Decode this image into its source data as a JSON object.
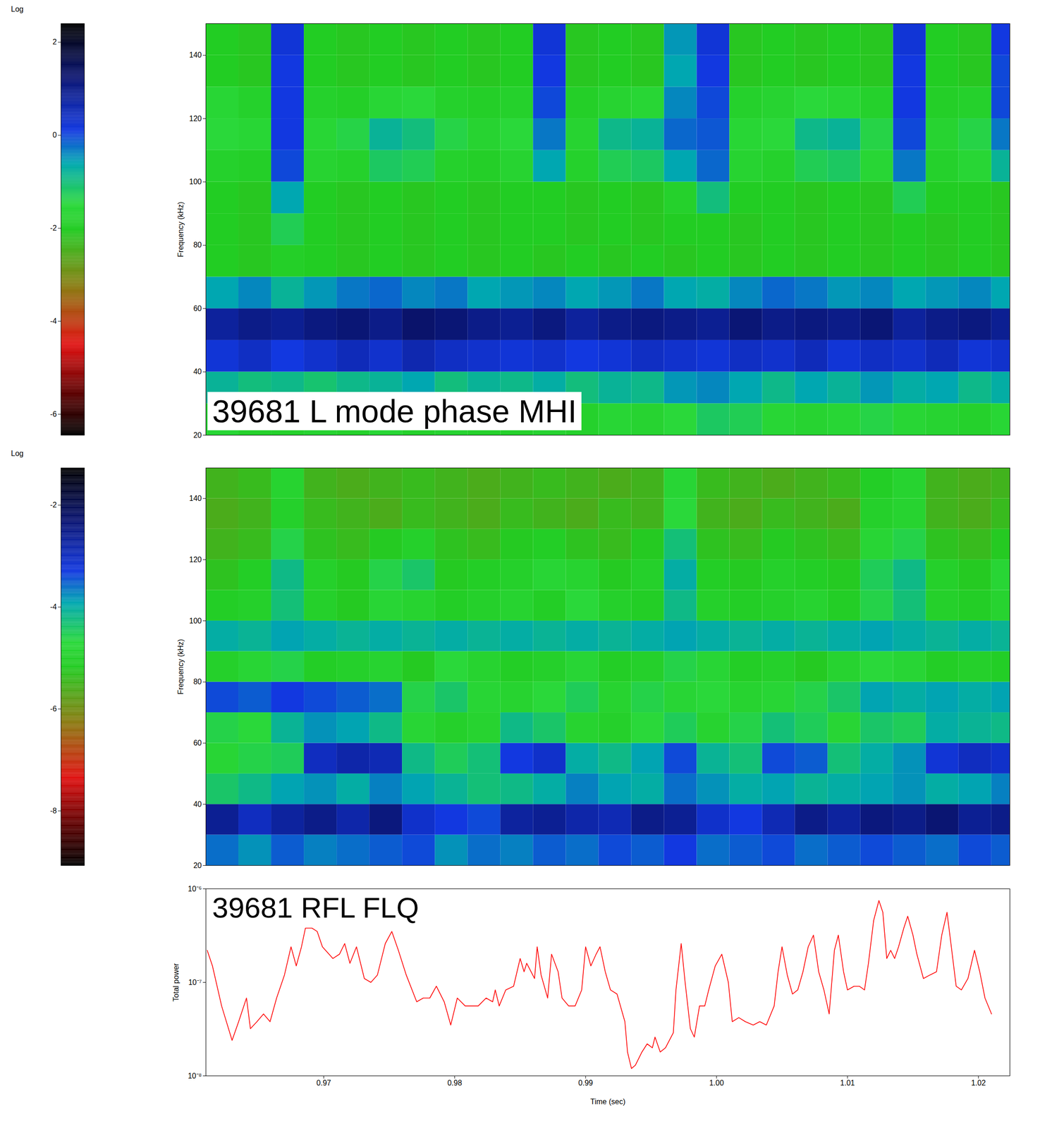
{
  "chart_data": [
    {
      "type": "heatmap",
      "annotation": "39681 L mode phase MHI",
      "ylabel": "Frequency (kHz)",
      "tick_labels": "y",
      "xlim": [
        0.961,
        1.0224
      ],
      "ylim": [
        20,
        150
      ],
      "yticks": [
        20,
        40,
        60,
        80,
        100,
        120,
        140
      ],
      "x_edges": [
        0.961,
        0.9635,
        0.966,
        0.9685,
        0.971,
        0.9735,
        0.976,
        0.9785,
        0.981,
        0.9835,
        0.986,
        0.9885,
        0.991,
        0.9935,
        0.996,
        0.9985,
        1.001,
        1.0035,
        1.006,
        1.0085,
        1.011,
        1.0135,
        1.016,
        1.0185,
        1.021,
        1.0235
      ],
      "y_edges": [
        20,
        30,
        40,
        50,
        60,
        70,
        80,
        90,
        100,
        110,
        120,
        130,
        140,
        150
      ],
      "cells": [
        [
          -1.6,
          -1.8,
          -1.8,
          -1.7,
          -1.8,
          -1.6,
          -1.8,
          -1.7,
          -1.8,
          -1.8,
          -1.7,
          -1.8,
          -1.6,
          -1.7,
          -1.5,
          -1.2,
          -1.3,
          -1.6,
          -1.7,
          -1.6,
          -1.4,
          -1.6,
          -1.7,
          -1.8,
          -1.6
        ],
        [
          -0.8,
          -1.0,
          -0.9,
          -1.1,
          -0.9,
          -0.8,
          -0.6,
          -1.0,
          -0.8,
          -0.9,
          -0.7,
          -1.0,
          -0.8,
          -0.9,
          -0.5,
          -0.4,
          -0.6,
          -0.9,
          -0.6,
          -0.8,
          -0.5,
          -0.7,
          -0.6,
          -0.9,
          -0.7
        ],
        [
          0.2,
          0.4,
          0.1,
          0.3,
          0.5,
          0.3,
          0.6,
          0.4,
          0.3,
          0.2,
          0.3,
          0.1,
          0.2,
          0.4,
          0.3,
          0.2,
          0.4,
          0.3,
          0.5,
          0.2,
          0.4,
          0.3,
          0.5,
          0.2,
          0.3
        ],
        [
          0.8,
          1.0,
          0.9,
          1.1,
          1.2,
          1.0,
          1.3,
          1.2,
          1.0,
          0.9,
          1.1,
          0.8,
          1.0,
          1.1,
          1.0,
          0.9,
          1.2,
          1.0,
          1.1,
          1.0,
          1.2,
          0.8,
          1.0,
          1.1,
          0.9
        ],
        [
          -0.6,
          -0.4,
          -0.8,
          -0.5,
          -0.3,
          -0.2,
          -0.4,
          -0.3,
          -0.6,
          -0.5,
          -0.4,
          -0.6,
          -0.5,
          -0.3,
          -0.6,
          -0.7,
          -0.4,
          -0.2,
          -0.3,
          -0.5,
          -0.4,
          -0.6,
          -0.5,
          -0.4,
          -0.6
        ],
        [
          -2.0,
          -2.1,
          -1.9,
          -2.0,
          -2.1,
          -2.0,
          -2.1,
          -2.0,
          -2.1,
          -2.0,
          -2.1,
          -2.0,
          -2.1,
          -2.0,
          -2.1,
          -2.0,
          -2.1,
          -2.0,
          -2.1,
          -2.0,
          -2.1,
          -2.0,
          -2.1,
          -2.0,
          -2.1
        ],
        [
          -2.0,
          -2.1,
          -1.3,
          -2.0,
          -2.1,
          -2.0,
          -2.1,
          -2.0,
          -2.1,
          -2.0,
          -2.0,
          -2.1,
          -2.0,
          -2.1,
          -2.0,
          -2.0,
          -2.1,
          -2.0,
          -2.1,
          -2.0,
          -2.1,
          -2.0,
          -2.1,
          -2.0,
          -2.1
        ],
        [
          -2.0,
          -2.1,
          -0.6,
          -2.0,
          -2.1,
          -2.0,
          -2.1,
          -2.0,
          -2.1,
          -2.0,
          -2.0,
          -2.1,
          -2.0,
          -2.1,
          -1.8,
          -1.0,
          -2.0,
          -2.0,
          -2.1,
          -2.0,
          -2.1,
          -1.3,
          -2.0,
          -2.0,
          -2.1
        ],
        [
          -1.8,
          -1.9,
          0.0,
          -1.7,
          -1.8,
          -1.2,
          -1.3,
          -1.8,
          -1.9,
          -1.7,
          -0.6,
          -1.8,
          -1.3,
          -1.2,
          -0.6,
          -0.2,
          -1.7,
          -1.8,
          -1.3,
          -1.2,
          -1.6,
          -0.3,
          -1.8,
          -1.6,
          -0.8
        ],
        [
          -1.5,
          -1.6,
          0.1,
          -1.6,
          -1.4,
          -0.8,
          -1.0,
          -1.4,
          -1.7,
          -1.5,
          -0.3,
          -1.7,
          -0.9,
          -0.8,
          -0.2,
          -0.1,
          -1.6,
          -1.5,
          -0.9,
          -0.8,
          -1.4,
          0.0,
          -1.7,
          -1.4,
          -0.3
        ],
        [
          -1.6,
          -1.8,
          0.1,
          -1.8,
          -1.9,
          -1.6,
          -1.5,
          -1.8,
          -1.9,
          -1.8,
          0.0,
          -1.9,
          -1.7,
          -1.6,
          -0.4,
          0.0,
          -1.8,
          -1.7,
          -1.5,
          -1.6,
          -1.8,
          0.1,
          -1.9,
          -1.8,
          0.0
        ],
        [
          -2.0,
          -2.1,
          0.1,
          -2.0,
          -2.1,
          -2.0,
          -2.1,
          -2.0,
          -2.1,
          -2.0,
          0.1,
          -2.1,
          -2.0,
          -2.1,
          -0.6,
          0.1,
          -2.1,
          -2.0,
          -2.1,
          -2.0,
          -2.1,
          0.1,
          -2.0,
          -2.1,
          0.0
        ],
        [
          -2.0,
          -2.1,
          0.2,
          -2.0,
          -2.1,
          -2.0,
          -2.1,
          -2.0,
          -2.1,
          -2.0,
          0.2,
          -2.1,
          -2.0,
          -2.1,
          -0.5,
          0.2,
          -2.1,
          -2.0,
          -2.1,
          -2.0,
          -2.1,
          0.2,
          -2.0,
          -2.1,
          0.1
        ]
      ],
      "colorbar": {
        "title": "Log",
        "range": [
          -6.45,
          2.4
        ],
        "ticks": [
          2,
          0,
          -2,
          -4,
          -6
        ]
      }
    },
    {
      "type": "heatmap",
      "ylabel": "Frequency (kHz)",
      "tick_labels": "y",
      "xlim": [
        0.961,
        1.0224
      ],
      "ylim": [
        20,
        150
      ],
      "yticks": [
        20,
        40,
        60,
        80,
        100,
        120,
        140
      ],
      "x_edges": [
        0.961,
        0.9635,
        0.966,
        0.9685,
        0.971,
        0.9735,
        0.976,
        0.9785,
        0.981,
        0.9835,
        0.986,
        0.9885,
        0.991,
        0.9935,
        0.996,
        0.9985,
        1.001,
        1.0035,
        1.006,
        1.0085,
        1.011,
        1.0135,
        1.016,
        1.0185,
        1.021,
        1.0235
      ],
      "y_edges": [
        20,
        30,
        40,
        50,
        60,
        70,
        80,
        90,
        100,
        110,
        120,
        130,
        140,
        150
      ],
      "cells": [
        [
          -3.6,
          -3.8,
          -3.5,
          -3.7,
          -3.6,
          -3.5,
          -3.4,
          -3.8,
          -3.6,
          -3.7,
          -3.5,
          -3.6,
          -3.4,
          -3.5,
          -3.3,
          -3.6,
          -3.5,
          -3.4,
          -3.6,
          -3.5,
          -3.4,
          -3.5,
          -3.6,
          -3.4,
          -3.5
        ],
        [
          -2.6,
          -3.0,
          -2.7,
          -2.5,
          -2.8,
          -2.4,
          -3.1,
          -3.3,
          -3.4,
          -2.7,
          -2.6,
          -2.8,
          -2.9,
          -2.5,
          -2.6,
          -3.1,
          -3.3,
          -2.9,
          -2.5,
          -2.7,
          -2.4,
          -2.5,
          -2.3,
          -2.6,
          -2.5
        ],
        [
          -4.4,
          -4.2,
          -3.9,
          -3.8,
          -4.0,
          -3.7,
          -3.9,
          -4.1,
          -4.3,
          -4.2,
          -4.0,
          -3.7,
          -3.9,
          -4.0,
          -3.6,
          -3.8,
          -4.0,
          -3.9,
          -4.1,
          -4.0,
          -3.9,
          -3.8,
          -4.0,
          -3.9,
          -3.7
        ],
        [
          -4.8,
          -4.6,
          -4.5,
          -3.0,
          -2.8,
          -2.9,
          -4.2,
          -4.5,
          -4.3,
          -3.3,
          -3.1,
          -4.0,
          -4.2,
          -3.9,
          -3.4,
          -4.1,
          -4.3,
          -3.4,
          -3.5,
          -4.3,
          -4.0,
          -3.8,
          -3.2,
          -3.0,
          -3.1
        ],
        [
          -4.6,
          -4.7,
          -4.1,
          -3.8,
          -3.9,
          -4.2,
          -4.8,
          -5.0,
          -4.9,
          -4.2,
          -4.4,
          -4.9,
          -5.0,
          -4.7,
          -4.5,
          -4.9,
          -4.6,
          -4.3,
          -4.5,
          -4.8,
          -4.4,
          -4.5,
          -4.0,
          -4.1,
          -4.2
        ],
        [
          -3.4,
          -3.5,
          -3.3,
          -3.4,
          -3.5,
          -3.6,
          -4.6,
          -4.4,
          -4.8,
          -4.9,
          -4.7,
          -4.5,
          -4.9,
          -4.6,
          -4.8,
          -4.7,
          -4.9,
          -4.8,
          -4.6,
          -4.4,
          -3.9,
          -4.0,
          -3.9,
          -4.0,
          -3.9
        ],
        [
          -5.0,
          -4.8,
          -4.6,
          -5.1,
          -5.0,
          -4.9,
          -5.2,
          -4.7,
          -4.9,
          -5.1,
          -5.0,
          -4.8,
          -5.1,
          -5.0,
          -4.6,
          -4.8,
          -5.1,
          -5.0,
          -5.2,
          -4.9,
          -4.7,
          -4.8,
          -5.1,
          -5.0,
          -5.1
        ],
        [
          -4.0,
          -4.1,
          -3.9,
          -4.0,
          -4.1,
          -4.0,
          -4.1,
          -4.0,
          -4.1,
          -4.0,
          -4.1,
          -4.0,
          -4.1,
          -4.0,
          -3.9,
          -4.0,
          -4.1,
          -4.0,
          -4.1,
          -4.0,
          -3.9,
          -4.0,
          -4.1,
          -4.0,
          -4.1
        ],
        [
          -5.1,
          -5.0,
          -4.3,
          -5.0,
          -5.2,
          -4.8,
          -4.9,
          -5.1,
          -5.0,
          -4.9,
          -5.1,
          -4.7,
          -5.0,
          -5.1,
          -4.2,
          -5.0,
          -5.1,
          -5.0,
          -4.9,
          -5.1,
          -4.6,
          -4.3,
          -5.0,
          -5.1,
          -4.9
        ],
        [
          -5.3,
          -5.1,
          -4.2,
          -5.0,
          -5.2,
          -4.6,
          -4.4,
          -5.2,
          -5.1,
          -5.0,
          -4.8,
          -4.9,
          -5.2,
          -5.0,
          -4.0,
          -5.1,
          -5.2,
          -5.0,
          -5.1,
          -5.2,
          -4.5,
          -4.2,
          -5.0,
          -5.2,
          -4.8
        ],
        [
          -5.5,
          -5.4,
          -4.6,
          -5.3,
          -5.4,
          -5.2,
          -5.0,
          -5.3,
          -5.4,
          -5.2,
          -5.1,
          -5.3,
          -5.4,
          -5.2,
          -4.3,
          -5.3,
          -5.4,
          -5.2,
          -5.3,
          -5.4,
          -4.8,
          -4.6,
          -5.3,
          -5.4,
          -5.2
        ],
        [
          -5.6,
          -5.5,
          -5.0,
          -5.4,
          -5.5,
          -5.6,
          -5.4,
          -5.5,
          -5.6,
          -5.4,
          -5.5,
          -5.6,
          -5.4,
          -5.5,
          -4.7,
          -5.5,
          -5.6,
          -5.4,
          -5.5,
          -5.6,
          -5.0,
          -4.9,
          -5.5,
          -5.6,
          -5.4
        ],
        [
          -5.5,
          -5.4,
          -4.9,
          -5.5,
          -5.6,
          -5.5,
          -5.4,
          -5.5,
          -5.6,
          -5.5,
          -5.4,
          -5.5,
          -5.6,
          -5.5,
          -4.8,
          -5.4,
          -5.5,
          -5.6,
          -5.5,
          -5.4,
          -5.1,
          -4.9,
          -5.5,
          -5.6,
          -5.5
        ]
      ],
      "colorbar": {
        "title": "Log",
        "range": [
          -9.07,
          -1.27
        ],
        "ticks": [
          -2,
          -4,
          -6,
          -8
        ]
      }
    },
    {
      "type": "line",
      "annotation": "39681 RFL FLQ",
      "xlabel": "Time (sec)",
      "ylabel": "Total power",
      "log": "y",
      "xlim": [
        0.961,
        1.0224
      ],
      "ylim": [
        1e-08,
        1e-06
      ],
      "xticks": [
        0.97,
        0.98,
        0.99,
        {
          "value": 1,
          "label": "1.00"
        },
        1.01,
        1.02
      ],
      "yticks": [
        {
          "value": 1e-08,
          "label": "10⁻⁸"
        },
        {
          "value": 1e-07,
          "label": "10⁻⁷"
        },
        {
          "value": 1e-06,
          "label": "10⁻⁶"
        }
      ],
      "x": [
        0.9611,
        0.9615,
        0.9622,
        0.963,
        0.9635,
        0.9641,
        0.9644,
        0.9649,
        0.9654,
        0.9659,
        0.9664,
        0.967,
        0.9675,
        0.9679,
        0.9683,
        0.9686,
        0.9691,
        0.9695,
        0.9699,
        0.9707,
        0.9712,
        0.9716,
        0.972,
        0.9725,
        0.9731,
        0.9736,
        0.9741,
        0.9747,
        0.9752,
        0.9757,
        0.9763,
        0.9771,
        0.9776,
        0.9781,
        0.9786,
        0.9792,
        0.9797,
        0.9802,
        0.9808,
        0.9813,
        0.9818,
        0.9824,
        0.9829,
        0.9831,
        0.9834,
        0.9839,
        0.9845,
        0.985,
        0.9853,
        0.9855,
        0.9861,
        0.9863,
        0.9866,
        0.9871,
        0.9874,
        0.9879,
        0.9882,
        0.9887,
        0.9892,
        0.9897,
        0.99,
        0.9904,
        0.9908,
        0.9911,
        0.9915,
        0.9919,
        0.9924,
        0.993,
        0.9932,
        0.9935,
        0.9938,
        0.9943,
        0.9947,
        0.9951,
        0.9953,
        0.9957,
        0.9961,
        0.9967,
        0.9969,
        0.9973,
        0.9976,
        0.998,
        0.9983,
        0.9987,
        0.9991,
        0.9994,
        0.9999,
        1.0004,
        1.0009,
        1.0012,
        1.0017,
        1.0022,
        1.0028,
        1.0033,
        1.0038,
        1.0044,
        1.0047,
        1.005,
        1.0054,
        1.0058,
        1.0062,
        1.0066,
        1.007,
        1.0074,
        1.0078,
        1.0082,
        1.0086,
        1.009,
        1.0093,
        1.0097,
        1.01,
        1.0105,
        1.0109,
        1.0113,
        1.0116,
        1.012,
        1.0124,
        1.0127,
        1.013,
        1.0133,
        1.0136,
        1.0139,
        1.0143,
        1.0146,
        1.015,
        1.0153,
        1.0158,
        1.0163,
        1.0168,
        1.0172,
        1.0176,
        1.0179,
        1.0183,
        1.0187,
        1.0192,
        1.0197,
        1.0201,
        1.0205,
        1.021
      ],
      "series": [
        {
          "color": "#ff0000",
          "values": [
            2.2e-07,
            1.5e-07,
            5.6e-08,
            2.4e-08,
            3.8e-08,
            6.8e-08,
            3.2e-08,
            3.8e-08,
            4.6e-08,
            3.8e-08,
            6.8e-08,
            1.2e-07,
            2.4e-07,
            1.5e-07,
            2.4e-07,
            3.8e-07,
            3.8e-07,
            3.5e-07,
            2.4e-07,
            1.8e-07,
            2e-07,
            2.6e-07,
            1.6e-07,
            2.4e-07,
            1.1e-07,
            1e-07,
            1.2e-07,
            2.6e-07,
            3.5e-07,
            2.2e-07,
            1.2e-07,
            6.2e-08,
            6.8e-08,
            6.8e-08,
            9.1e-08,
            6.2e-08,
            3.5e-08,
            6.8e-08,
            5.6e-08,
            5.6e-08,
            5.6e-08,
            6.8e-08,
            6.2e-08,
            8.3e-08,
            5.6e-08,
            8.3e-08,
            9.1e-08,
            1.8e-07,
            1.3e-07,
            1.6e-07,
            1.1e-07,
            2.4e-07,
            1.2e-07,
            6.8e-08,
            2e-07,
            1.3e-07,
            6.8e-08,
            5.6e-08,
            5.6e-08,
            8.3e-08,
            2.4e-07,
            1.5e-07,
            2e-07,
            2.4e-07,
            1.3e-07,
            8.3e-08,
            7.5e-08,
            3.8e-08,
            1.8e-08,
            1.2e-08,
            1.3e-08,
            1.8e-08,
            2.2e-08,
            2e-08,
            2.6e-08,
            1.8e-08,
            2e-08,
            2.9e-08,
            8.3e-08,
            2.6e-07,
            1e-07,
            3.2e-08,
            2.6e-08,
            5.6e-08,
            5.6e-08,
            8.3e-08,
            1.5e-07,
            2e-07,
            1e-07,
            3.8e-08,
            4.2e-08,
            3.8e-08,
            3.5e-08,
            3.8e-08,
            3.5e-08,
            5.6e-08,
            1.3e-07,
            2.4e-07,
            1.2e-07,
            7.5e-08,
            8.3e-08,
            1.3e-07,
            2.4e-07,
            3.2e-07,
            1.3e-07,
            8.3e-08,
            4.6e-08,
            2.2e-07,
            3.2e-07,
            1.3e-07,
            8.3e-08,
            9.1e-08,
            9.1e-08,
            8.3e-08,
            1.6e-07,
            4.6e-07,
            7.5e-07,
            5.6e-07,
            1.8e-07,
            2.2e-07,
            1.8e-07,
            2.4e-07,
            3.8e-07,
            5.1e-07,
            3.2e-07,
            2e-07,
            1.1e-07,
            1.2e-07,
            1.3e-07,
            3.2e-07,
            5.6e-07,
            2.6e-07,
            9.1e-08,
            8.3e-08,
            1.1e-07,
            2.2e-07,
            1.3e-07,
            6.8e-08,
            4.6e-08
          ]
        }
      ]
    }
  ]
}
